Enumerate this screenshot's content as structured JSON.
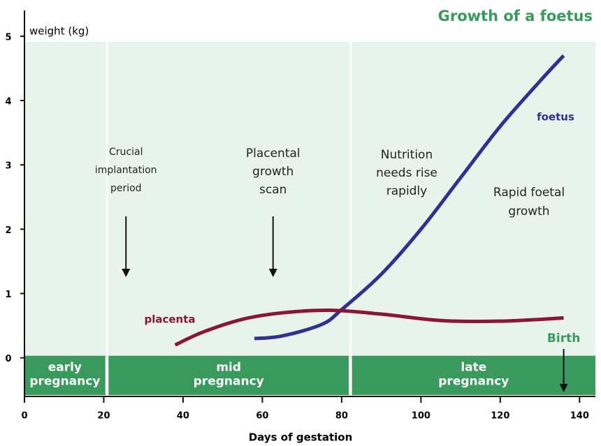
{
  "chart_data": {
    "type": "line",
    "title": "Growth of a foetus",
    "y_label": "weight (kg)",
    "x_label": "Days of gestation",
    "xlim": [
      0,
      144
    ],
    "ylim": [
      -0.6,
      5.4
    ],
    "xticks": [
      0,
      20,
      40,
      60,
      80,
      100,
      120,
      140
    ],
    "yticks": [
      0,
      1,
      2,
      3,
      4,
      5
    ],
    "series": [
      {
        "name": "foetus",
        "color": "#2e3192",
        "x": [
          58,
          65,
          75,
          80,
          90,
          100,
          110,
          120,
          130,
          136
        ],
        "values": [
          0.3,
          0.34,
          0.52,
          0.75,
          1.3,
          2.0,
          2.8,
          3.6,
          4.3,
          4.7
        ]
      },
      {
        "name": "placenta",
        "color": "#8b1538",
        "x": [
          38,
          45,
          55,
          65,
          77,
          90,
          105,
          120,
          136
        ],
        "values": [
          0.2,
          0.4,
          0.6,
          0.7,
          0.74,
          0.68,
          0.58,
          0.57,
          0.62
        ]
      }
    ],
    "phases": [
      {
        "lines": [
          "early",
          "pregnancy"
        ],
        "start": 0,
        "end": 20.4
      },
      {
        "lines": [
          "mid",
          "pregnancy"
        ],
        "start": 21.2,
        "end": 81.8
      },
      {
        "lines": [
          "late",
          "pregnancy"
        ],
        "start": 82.6,
        "end": 144
      }
    ],
    "annotations": [
      {
        "lines": [
          "Crucial",
          "implantation",
          "period"
        ],
        "arrow_day": 25.6
      },
      {
        "lines": [
          "Placental",
          "growth",
          "scan"
        ],
        "arrow_day": 62.7
      },
      {
        "lines": [
          "Nutrition",
          "needs rise",
          "rapidly"
        ]
      },
      {
        "lines": [
          "Rapid foetal",
          "growth"
        ]
      },
      {
        "lines": [
          "Birth"
        ],
        "arrow_day": 136
      }
    ]
  }
}
